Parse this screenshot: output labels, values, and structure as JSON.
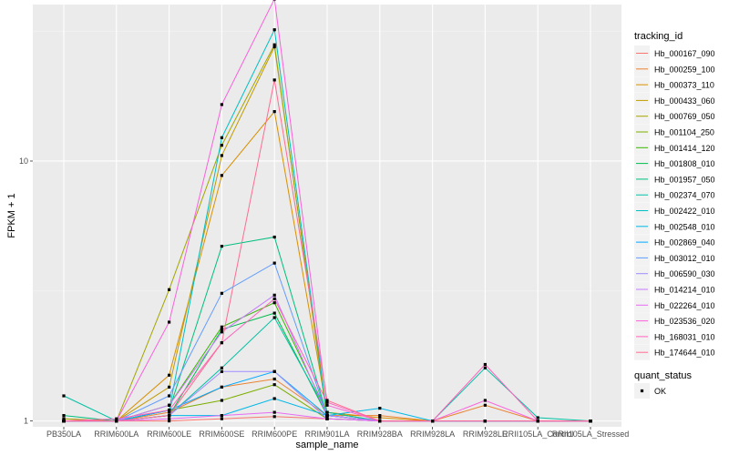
{
  "chart_data": {
    "type": "line",
    "xlabel": "sample_name",
    "ylabel": "FPKM + 1",
    "y_scale": "log10",
    "ylim": [
      0.95,
      40
    ],
    "y_ticks": [
      {
        "value": 1,
        "label": "1"
      },
      {
        "value": 10,
        "label": "10"
      }
    ],
    "grid": true,
    "legend_position": "right",
    "categories": [
      "PB350LA",
      "RRIM600LA",
      "RRIM600LE",
      "RRIM600SE",
      "RRIM600PE",
      "RRIM901LA",
      "RRIM928BA",
      "RRIM928LA",
      "RRIM928LE",
      "RRII105LA_Control",
      "RRII105LA_Stressed"
    ],
    "legend_title": "tracking_id",
    "series": [
      {
        "name": "Hb_000167_090",
        "color": "#F8766D",
        "values": [
          1.0,
          1.0,
          1.0,
          1.02,
          1.04,
          1.02,
          1.0,
          1.0,
          1.0,
          1.0,
          1.0
        ]
      },
      {
        "name": "Hb_000259_100",
        "color": "#EA8331",
        "values": [
          1.02,
          1.0,
          1.08,
          1.35,
          1.45,
          1.05,
          1.05,
          1.0,
          1.15,
          1.0,
          1.0
        ]
      },
      {
        "name": "Hb_000373_110",
        "color": "#D89000",
        "values": [
          1.0,
          1.0,
          1.5,
          8.8,
          15.5,
          1.08,
          1.03,
          1.0,
          1.0,
          1.0,
          1.0
        ]
      },
      {
        "name": "Hb_000433_060",
        "color": "#C09B00",
        "values": [
          1.0,
          1.0,
          1.35,
          10.5,
          27.5,
          1.05,
          1.0,
          1.0,
          1.0,
          1.0,
          1.0
        ]
      },
      {
        "name": "Hb_000769_050",
        "color": "#A3A500",
        "values": [
          1.02,
          1.0,
          3.2,
          11.5,
          28.0,
          1.02,
          1.0,
          1.0,
          1.0,
          1.0,
          1.0
        ]
      },
      {
        "name": "Hb_001104_250",
        "color": "#7CAE00",
        "values": [
          1.0,
          1.0,
          1.1,
          1.2,
          1.38,
          1.02,
          1.0,
          1.0,
          1.0,
          1.0,
          1.0
        ]
      },
      {
        "name": "Hb_001414_120",
        "color": "#39B600",
        "values": [
          1.0,
          1.0,
          1.15,
          2.3,
          2.85,
          1.08,
          1.0,
          1.0,
          1.0,
          1.0,
          1.0
        ]
      },
      {
        "name": "Hb_001808_010",
        "color": "#00BB4E",
        "values": [
          1.0,
          1.0,
          1.05,
          2.25,
          2.6,
          1.05,
          1.0,
          1.0,
          1.0,
          1.0,
          1.0
        ]
      },
      {
        "name": "Hb_001957_050",
        "color": "#00BF7D",
        "values": [
          1.05,
          1.0,
          1.1,
          4.7,
          5.1,
          1.05,
          1.0,
          1.0,
          1.0,
          1.0,
          1.0
        ]
      },
      {
        "name": "Hb_002374_070",
        "color": "#00C1A3",
        "values": [
          1.25,
          1.0,
          1.05,
          1.6,
          2.5,
          1.08,
          1.0,
          1.0,
          1.6,
          1.03,
          1.0
        ]
      },
      {
        "name": "Hb_002422_010",
        "color": "#00BFC4",
        "values": [
          1.0,
          1.0,
          1.1,
          12.3,
          32.0,
          1.05,
          1.0,
          1.0,
          1.0,
          1.0,
          1.0
        ]
      },
      {
        "name": "Hb_002548_010",
        "color": "#00B8E7",
        "values": [
          1.0,
          1.0,
          1.05,
          1.05,
          1.22,
          1.05,
          1.12,
          1.0,
          1.0,
          1.0,
          1.0
        ]
      },
      {
        "name": "Hb_002869_040",
        "color": "#00A9FF",
        "values": [
          1.0,
          1.0,
          1.1,
          1.35,
          1.55,
          1.05,
          1.0,
          1.0,
          1.0,
          1.0,
          1.0
        ]
      },
      {
        "name": "Hb_003012_010",
        "color": "#619CFF",
        "values": [
          1.0,
          1.0,
          1.25,
          3.1,
          4.05,
          1.05,
          1.0,
          1.0,
          1.0,
          1.0,
          1.0
        ]
      },
      {
        "name": "Hb_006590_030",
        "color": "#9F8CFF",
        "values": [
          1.0,
          1.0,
          1.05,
          1.55,
          1.55,
          1.02,
          1.0,
          1.0,
          1.0,
          1.0,
          1.0
        ]
      },
      {
        "name": "Hb_014214_010",
        "color": "#C77CFF",
        "values": [
          1.0,
          1.0,
          1.15,
          2.2,
          3.05,
          1.05,
          1.0,
          1.0,
          1.0,
          1.0,
          1.0
        ]
      },
      {
        "name": "Hb_022264_010",
        "color": "#E76BF3",
        "values": [
          1.0,
          1.0,
          1.02,
          1.05,
          1.08,
          1.02,
          1.0,
          1.0,
          1.0,
          1.0,
          1.0
        ]
      },
      {
        "name": "Hb_023536_020",
        "color": "#FA62DB",
        "values": [
          1.0,
          1.0,
          2.4,
          16.5,
          42.0,
          1.15,
          1.0,
          1.0,
          1.2,
          1.0,
          1.0
        ]
      },
      {
        "name": "Hb_168031_010",
        "color": "#FF62BC",
        "values": [
          1.0,
          1.02,
          1.1,
          2.0,
          2.95,
          1.18,
          1.0,
          1.0,
          1.65,
          1.0,
          1.0
        ]
      },
      {
        "name": "Hb_174644_010",
        "color": "#FF6C91",
        "values": [
          1.0,
          1.0,
          1.05,
          2.0,
          20.5,
          1.2,
          1.0,
          1.0,
          1.0,
          1.0,
          1.0
        ]
      }
    ],
    "shape_legend": {
      "title": "quant_status",
      "items": [
        "OK"
      ]
    }
  }
}
